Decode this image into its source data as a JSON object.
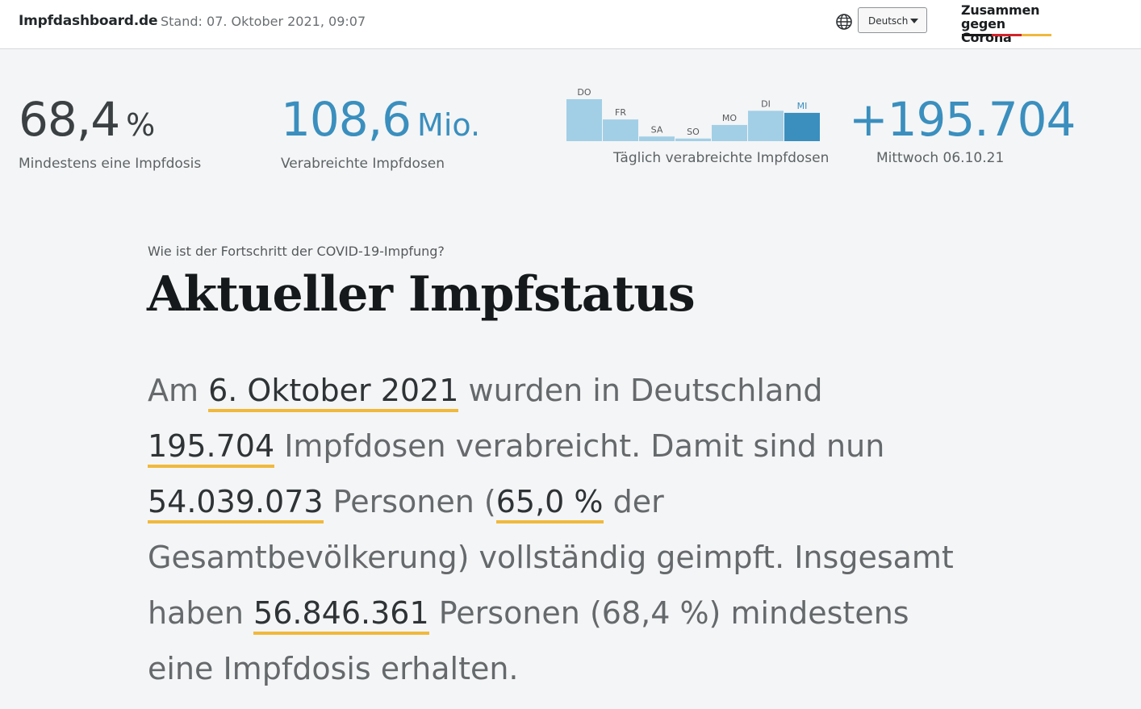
{
  "header": {
    "brand": "Impfdashboard.de",
    "stand": "Stand: 07. Oktober 2021, 09:07",
    "language_icon": "globe-icon",
    "language": "Deutsch",
    "campaign_line1": "Zusammen",
    "campaign_line2": "gegen Corona",
    "campaign_flag_colors": [
      "#1a1a1a",
      "#d3232a",
      "#f0b93c"
    ]
  },
  "kpis": {
    "first_dose": {
      "value": "68,4",
      "unit": "%",
      "label": "Mindestens eine Impfdosis"
    },
    "doses_total": {
      "value": "108,6",
      "unit": "Mio.",
      "label": "Verabreichte Impfdosen"
    },
    "daily": {
      "label": "Täglich verabreichte Impfdosen"
    },
    "latest": {
      "value": "+195.704",
      "label": "Mittwoch 06.10.21"
    }
  },
  "chart_data": {
    "type": "bar",
    "categories": [
      "DO",
      "FR",
      "SA",
      "SO",
      "MO",
      "DI",
      "MI"
    ],
    "values": [
      290000,
      150000,
      32000,
      18000,
      112000,
      210000,
      195704
    ],
    "highlight_index": 6,
    "colors": {
      "bar": "#a2cfe6",
      "highlight": "#3a8fbe",
      "label": "#55595c",
      "highlight_label": "#3a8fbe"
    }
  },
  "main": {
    "kicker": "Wie ist der Fortschritt der COVID-19-Impfung?",
    "title": "Aktueller Impfstatus",
    "status": {
      "t1": "Am ",
      "date": "6. Oktober 2021",
      "t2": " wurden in Deutschland ",
      "doses_day": "195.704",
      "t3": " Impfdosen verabreicht. Damit sind nun ",
      "full_count": "54.039.073",
      "t4": " Personen (",
      "full_pct": "65,0 %",
      "t5": " der Gesamtbevölkerung) vollständig geimpft. Insgesamt haben ",
      "first_count": "56.846.361",
      "t6": " Personen (68,4 %) mindestens eine Impfdosis erhalten."
    }
  },
  "colors": {
    "accent": "#3a8fbe",
    "underline": "#f0b93c",
    "background": "#f4f5f6"
  }
}
